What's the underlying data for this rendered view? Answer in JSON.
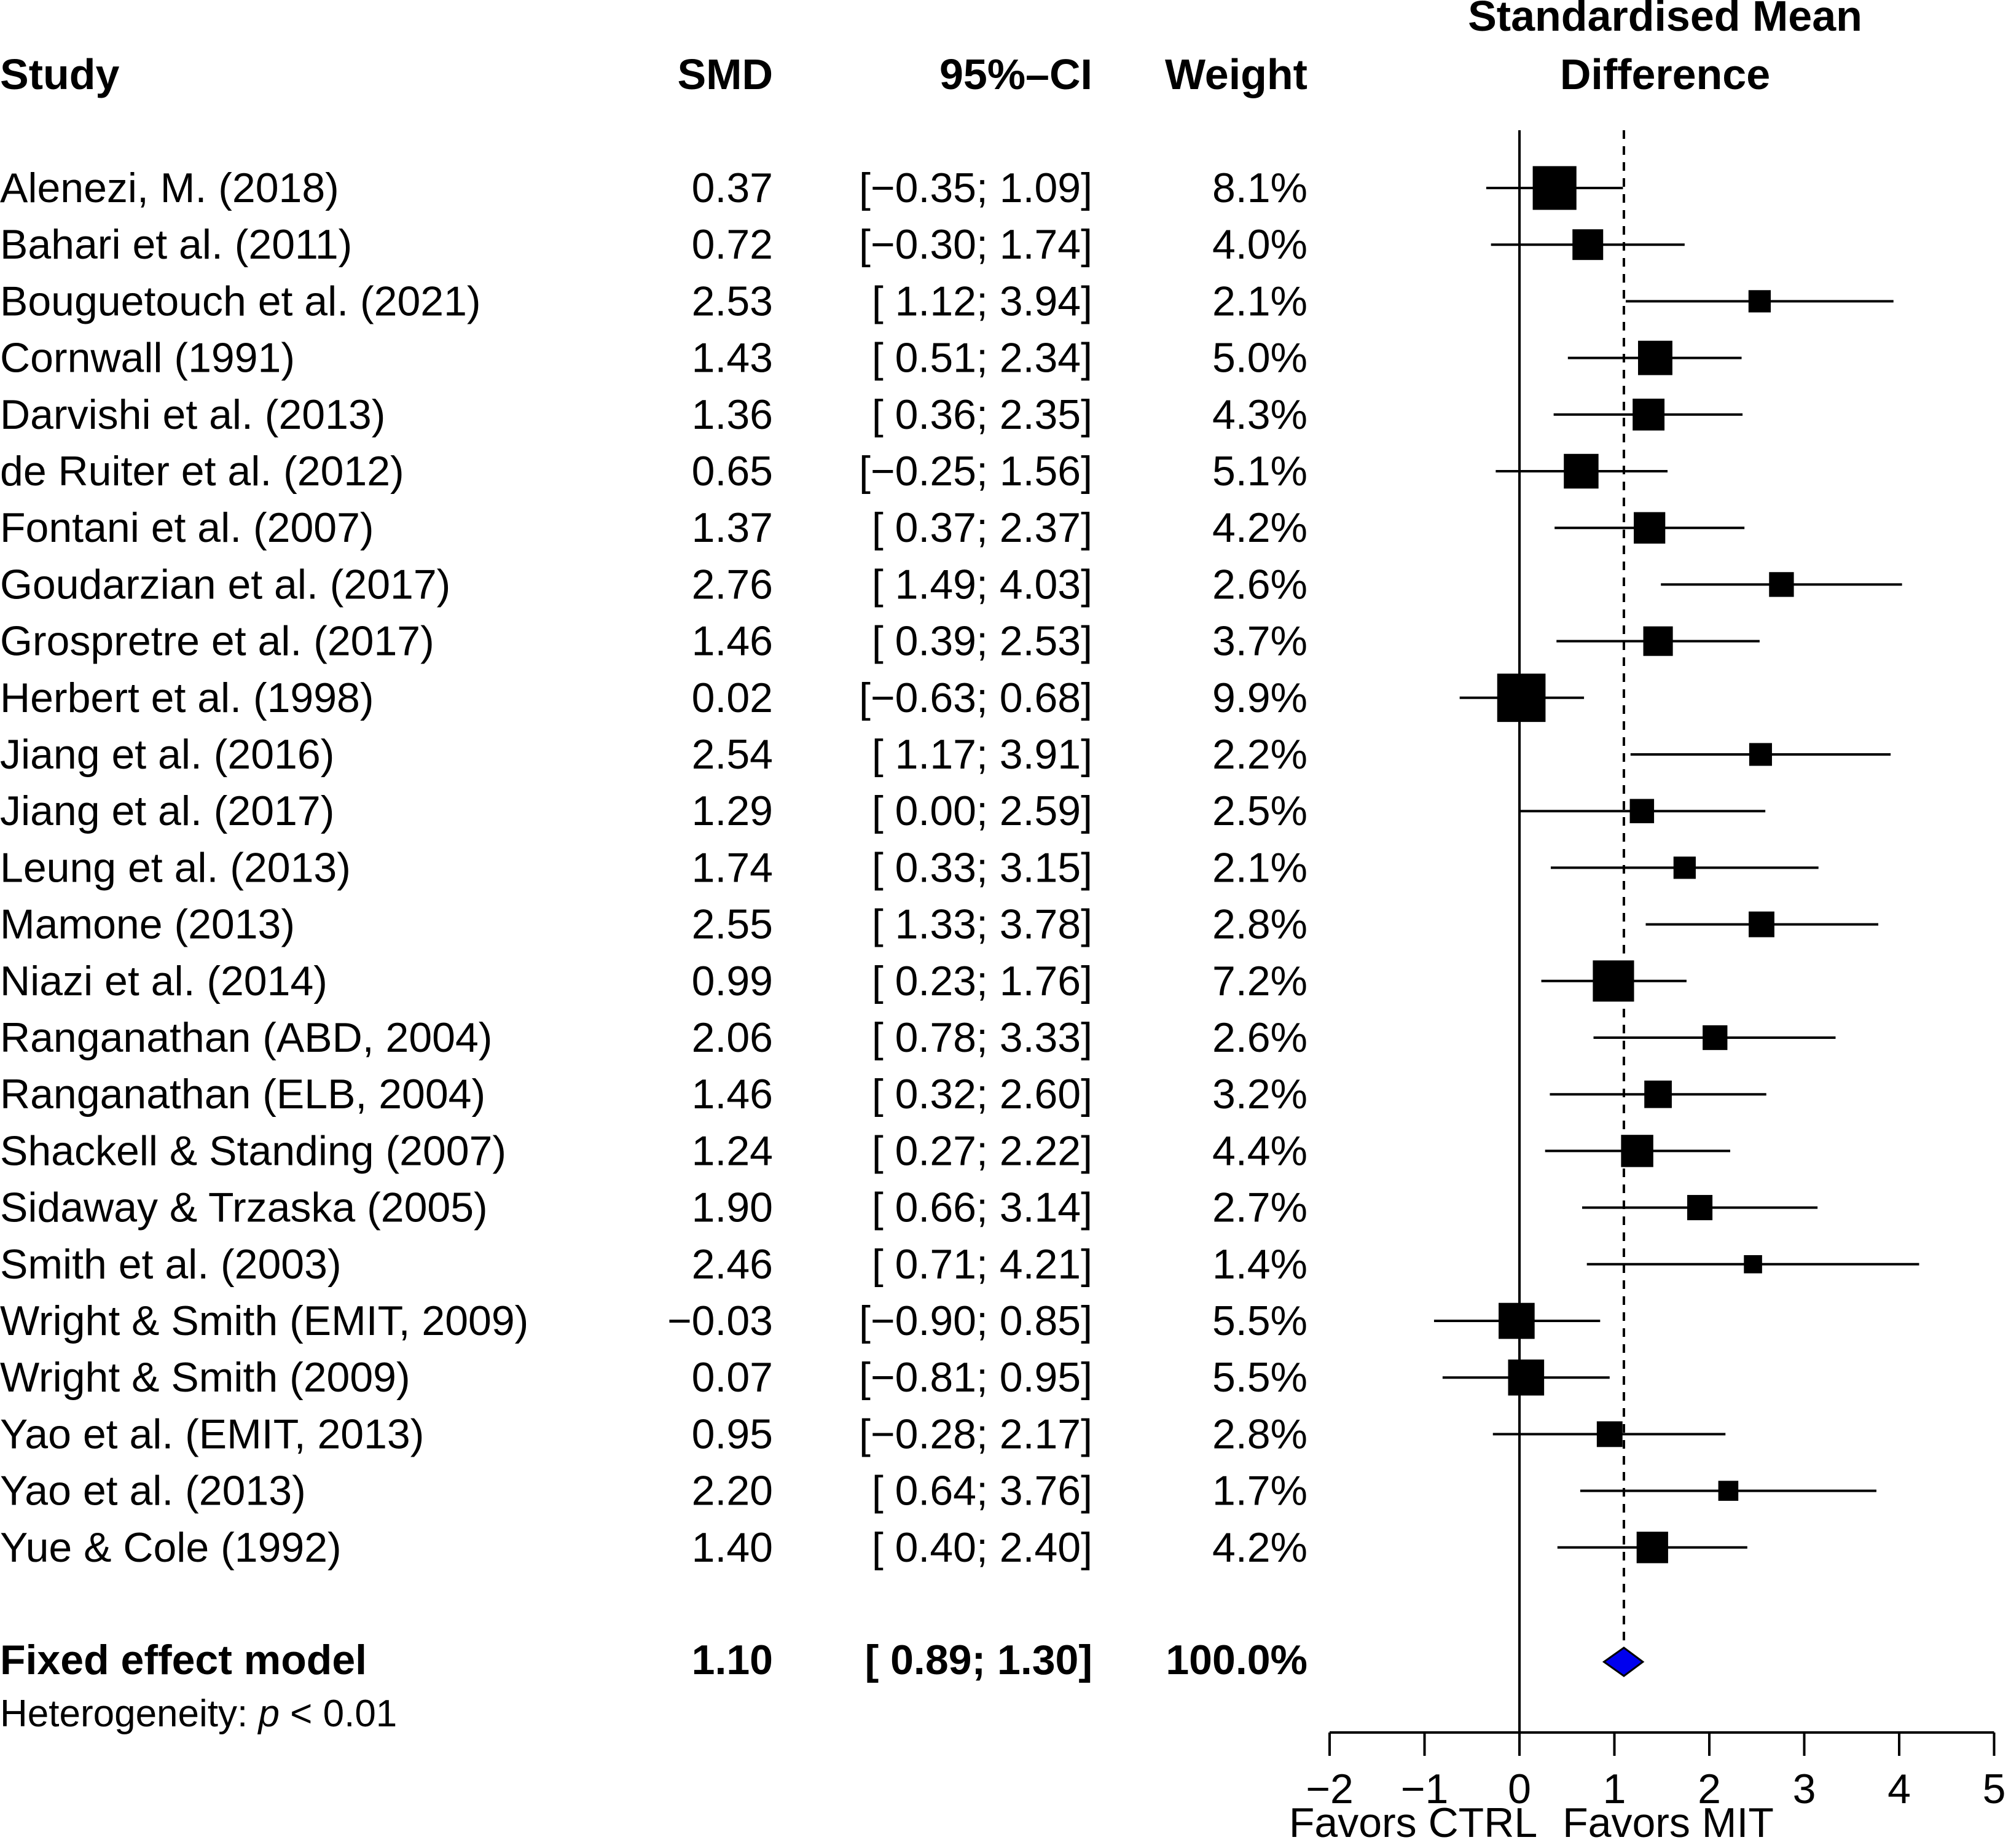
{
  "headers": {
    "study": "Study",
    "smd": "SMD",
    "ci": "95%–CI",
    "weight": "Weight",
    "plot_title_line1": "Standardised Mean",
    "plot_title_line2": "Difference"
  },
  "chart_data": {
    "type": "forest",
    "title": "Standardised Mean Difference",
    "xlabel_left": "Favors CTRL",
    "xlabel_right": "Favors MIT",
    "xlim": [
      -2,
      5
    ],
    "xticks": [
      -2,
      -1,
      0,
      1,
      2,
      3,
      4,
      5
    ],
    "xtick_labels": [
      "−2",
      "−1",
      "0",
      "1",
      "2",
      "3",
      "4",
      "5"
    ],
    "reference_line": 0,
    "pooled_line": 1.1,
    "studies": [
      {
        "study": "Alenezi, M. (2018)",
        "smd": 0.37,
        "lower": -0.35,
        "upper": 1.09,
        "weight": 8.1,
        "smd_text": "0.37",
        "ci_text": "[−0.35; 1.09]",
        "weight_text": "8.1%"
      },
      {
        "study": "Bahari et al. (2011)",
        "smd": 0.72,
        "lower": -0.3,
        "upper": 1.74,
        "weight": 4.0,
        "smd_text": "0.72",
        "ci_text": "[−0.30; 1.74]",
        "weight_text": "4.0%"
      },
      {
        "study": "Bouguetouch et al. (2021)",
        "smd": 2.53,
        "lower": 1.12,
        "upper": 3.94,
        "weight": 2.1,
        "smd_text": "2.53",
        "ci_text": "[ 1.12; 3.94]",
        "weight_text": "2.1%"
      },
      {
        "study": "Cornwall (1991)",
        "smd": 1.43,
        "lower": 0.51,
        "upper": 2.34,
        "weight": 5.0,
        "smd_text": "1.43",
        "ci_text": "[ 0.51; 2.34]",
        "weight_text": "5.0%"
      },
      {
        "study": "Darvishi et al. (2013)",
        "smd": 1.36,
        "lower": 0.36,
        "upper": 2.35,
        "weight": 4.3,
        "smd_text": "1.36",
        "ci_text": "[ 0.36; 2.35]",
        "weight_text": "4.3%"
      },
      {
        "study": "de Ruiter et al. (2012)",
        "smd": 0.65,
        "lower": -0.25,
        "upper": 1.56,
        "weight": 5.1,
        "smd_text": "0.65",
        "ci_text": "[−0.25; 1.56]",
        "weight_text": "5.1%"
      },
      {
        "study": "Fontani et al. (2007)",
        "smd": 1.37,
        "lower": 0.37,
        "upper": 2.37,
        "weight": 4.2,
        "smd_text": "1.37",
        "ci_text": "[ 0.37; 2.37]",
        "weight_text": "4.2%"
      },
      {
        "study": "Goudarzian et al. (2017)",
        "smd": 2.76,
        "lower": 1.49,
        "upper": 4.03,
        "weight": 2.6,
        "smd_text": "2.76",
        "ci_text": "[ 1.49; 4.03]",
        "weight_text": "2.6%"
      },
      {
        "study": "Grospretre et al. (2017)",
        "smd": 1.46,
        "lower": 0.39,
        "upper": 2.53,
        "weight": 3.7,
        "smd_text": "1.46",
        "ci_text": "[ 0.39; 2.53]",
        "weight_text": "3.7%"
      },
      {
        "study": "Herbert et al. (1998)",
        "smd": 0.02,
        "lower": -0.63,
        "upper": 0.68,
        "weight": 9.9,
        "smd_text": "0.02",
        "ci_text": "[−0.63; 0.68]",
        "weight_text": "9.9%"
      },
      {
        "study": "Jiang et al. (2016)",
        "smd": 2.54,
        "lower": 1.17,
        "upper": 3.91,
        "weight": 2.2,
        "smd_text": "2.54",
        "ci_text": "[ 1.17; 3.91]",
        "weight_text": "2.2%"
      },
      {
        "study": "Jiang et al. (2017)",
        "smd": 1.29,
        "lower": 0.0,
        "upper": 2.59,
        "weight": 2.5,
        "smd_text": "1.29",
        "ci_text": "[ 0.00; 2.59]",
        "weight_text": "2.5%"
      },
      {
        "study": "Leung et al. (2013)",
        "smd": 1.74,
        "lower": 0.33,
        "upper": 3.15,
        "weight": 2.1,
        "smd_text": "1.74",
        "ci_text": "[ 0.33; 3.15]",
        "weight_text": "2.1%"
      },
      {
        "study": "Mamone (2013)",
        "smd": 2.55,
        "lower": 1.33,
        "upper": 3.78,
        "weight": 2.8,
        "smd_text": "2.55",
        "ci_text": "[ 1.33; 3.78]",
        "weight_text": "2.8%"
      },
      {
        "study": "Niazi et al. (2014)",
        "smd": 0.99,
        "lower": 0.23,
        "upper": 1.76,
        "weight": 7.2,
        "smd_text": "0.99",
        "ci_text": "[ 0.23; 1.76]",
        "weight_text": "7.2%"
      },
      {
        "study": "Ranganathan  (ABD, 2004)",
        "smd": 2.06,
        "lower": 0.78,
        "upper": 3.33,
        "weight": 2.6,
        "smd_text": "2.06",
        "ci_text": "[ 0.78; 3.33]",
        "weight_text": "2.6%"
      },
      {
        "study": "Ranganathan (ELB, 2004)",
        "smd": 1.46,
        "lower": 0.32,
        "upper": 2.6,
        "weight": 3.2,
        "smd_text": "1.46",
        "ci_text": "[ 0.32; 2.60]",
        "weight_text": "3.2%"
      },
      {
        "study": "Shackell & Standing (2007)",
        "smd": 1.24,
        "lower": 0.27,
        "upper": 2.22,
        "weight": 4.4,
        "smd_text": "1.24",
        "ci_text": "[ 0.27; 2.22]",
        "weight_text": "4.4%"
      },
      {
        "study": "Sidaway & Trzaska (2005)",
        "smd": 1.9,
        "lower": 0.66,
        "upper": 3.14,
        "weight": 2.7,
        "smd_text": "1.90",
        "ci_text": "[ 0.66; 3.14]",
        "weight_text": "2.7%"
      },
      {
        "study": "Smith et al. (2003)",
        "smd": 2.46,
        "lower": 0.71,
        "upper": 4.21,
        "weight": 1.4,
        "smd_text": "2.46",
        "ci_text": "[ 0.71; 4.21]",
        "weight_text": "1.4%"
      },
      {
        "study": "Wright & Smith (EMIT, 2009)",
        "smd": -0.03,
        "lower": -0.9,
        "upper": 0.85,
        "weight": 5.5,
        "smd_text": "−0.03",
        "ci_text": "[−0.90; 0.85]",
        "weight_text": "5.5%"
      },
      {
        "study": "Wright & Smith (2009)",
        "smd": 0.07,
        "lower": -0.81,
        "upper": 0.95,
        "weight": 5.5,
        "smd_text": "0.07",
        "ci_text": "[−0.81; 0.95]",
        "weight_text": "5.5%"
      },
      {
        "study": "Yao et al. (EMIT, 2013)",
        "smd": 0.95,
        "lower": -0.28,
        "upper": 2.17,
        "weight": 2.8,
        "smd_text": "0.95",
        "ci_text": "[−0.28; 2.17]",
        "weight_text": "2.8%"
      },
      {
        "study": "Yao et al. (2013)",
        "smd": 2.2,
        "lower": 0.64,
        "upper": 3.76,
        "weight": 1.7,
        "smd_text": "2.20",
        "ci_text": "[ 0.64; 3.76]",
        "weight_text": "1.7%"
      },
      {
        "study": "Yue & Cole (1992)",
        "smd": 1.4,
        "lower": 0.4,
        "upper": 2.4,
        "weight": 4.2,
        "smd_text": "1.40",
        "ci_text": "[ 0.40; 2.40]",
        "weight_text": "4.2%"
      }
    ],
    "pooled": {
      "label": "Fixed effect model",
      "smd": 1.1,
      "lower": 0.89,
      "upper": 1.3,
      "weight": 100.0,
      "smd_text": "1.10",
      "ci_text": "[ 0.89; 1.30]",
      "weight_text": "100.0%",
      "color": "#0000ee"
    },
    "heterogeneity": {
      "prefix": "Heterogeneity: ",
      "italic": "p",
      "suffix": " < 0.01"
    }
  }
}
